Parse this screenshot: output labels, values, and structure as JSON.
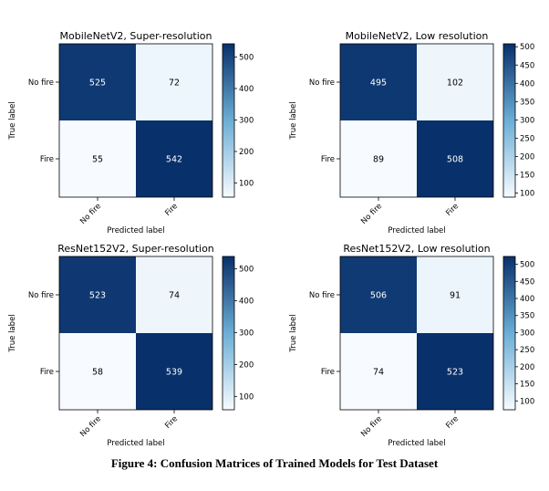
{
  "caption": "Figure 4: Confusion Matrices of Trained Models for Test Dataset",
  "colormap": {
    "low": "#f7fbff",
    "mid": "#6baed6",
    "high": "#08306b"
  },
  "chart_data": [
    {
      "type": "heatmap",
      "title": "MobileNetV2, Super-resolution",
      "xlabel": "Predicted label",
      "ylabel": "True label",
      "x_categories": [
        "No fire",
        "Fire"
      ],
      "y_categories": [
        "No fire",
        "Fire"
      ],
      "values": [
        [
          525,
          72
        ],
        [
          55,
          542
        ]
      ],
      "colorbar_ticks": [
        100,
        200,
        300,
        400,
        500
      ],
      "vmin": 55,
      "vmax": 542
    },
    {
      "type": "heatmap",
      "title": "MobileNetV2, Low resolution",
      "xlabel": "Predicted label",
      "ylabel": "True label",
      "x_categories": [
        "No fire",
        "Fire"
      ],
      "y_categories": [
        "No fire",
        "Fire"
      ],
      "values": [
        [
          495,
          102
        ],
        [
          89,
          508
        ]
      ],
      "colorbar_ticks": [
        100,
        150,
        200,
        250,
        300,
        350,
        400,
        450,
        500
      ],
      "vmin": 89,
      "vmax": 508
    },
    {
      "type": "heatmap",
      "title": "ResNet152V2, Super-resolution",
      "xlabel": "Predicted label",
      "ylabel": "True label",
      "x_categories": [
        "No fire",
        "Fire"
      ],
      "y_categories": [
        "No fire",
        "Fire"
      ],
      "values": [
        [
          523,
          74
        ],
        [
          58,
          539
        ]
      ],
      "colorbar_ticks": [
        100,
        200,
        300,
        400,
        500
      ],
      "vmin": 58,
      "vmax": 539
    },
    {
      "type": "heatmap",
      "title": "ResNet152V2, Low resolution",
      "xlabel": "Predicted label",
      "ylabel": "True label",
      "x_categories": [
        "No fire",
        "Fire"
      ],
      "y_categories": [
        "No fire",
        "Fire"
      ],
      "values": [
        [
          506,
          91
        ],
        [
          74,
          523
        ]
      ],
      "colorbar_ticks": [
        100,
        150,
        200,
        250,
        300,
        350,
        400,
        450,
        500
      ],
      "vmin": 74,
      "vmax": 523
    }
  ]
}
